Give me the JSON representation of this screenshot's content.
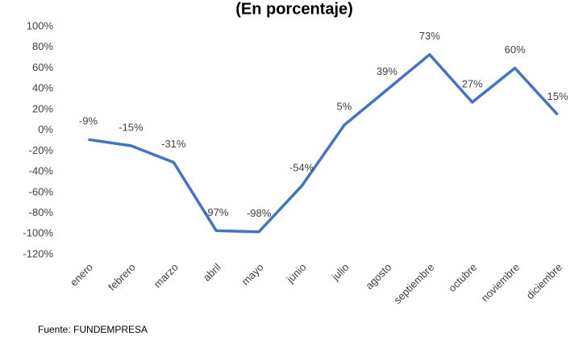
{
  "chart_data": {
    "type": "line",
    "title": "(En porcentaje)",
    "categories": [
      "enero",
      "febrero",
      "marzo",
      "abril",
      "mayo",
      "junio",
      "julio",
      "agosto",
      "septiembre",
      "octubre",
      "noviembre",
      "diciembre"
    ],
    "values": [
      -9,
      -15,
      -31,
      -97,
      -98,
      -54,
      5,
      39,
      73,
      27,
      60,
      15
    ],
    "value_labels": [
      "-9%",
      "-15%",
      "-31%",
      "-97%",
      "-98%",
      "-54%",
      "5%",
      "39%",
      "73%",
      "27%",
      "60%",
      "15%"
    ],
    "color": "#4472c4",
    "ylim": [
      -120,
      100
    ],
    "yticks": [
      {
        "value": -120,
        "label": "-120%"
      },
      {
        "value": -100,
        "label": "-100%"
      },
      {
        "value": -80,
        "label": "-80%"
      },
      {
        "value": -60,
        "label": "-60%"
      },
      {
        "value": -40,
        "label": "-40%"
      },
      {
        "value": -20,
        "label": "-20%"
      },
      {
        "value": 0,
        "label": "0%"
      },
      {
        "value": 20,
        "label": "20%"
      },
      {
        "value": 40,
        "label": "40%"
      },
      {
        "value": 60,
        "label": "60%"
      },
      {
        "value": 80,
        "label": "80%"
      },
      {
        "value": 100,
        "label": "100%"
      }
    ],
    "grid": false,
    "source": "Fuente: FUNDEMPRESA"
  }
}
